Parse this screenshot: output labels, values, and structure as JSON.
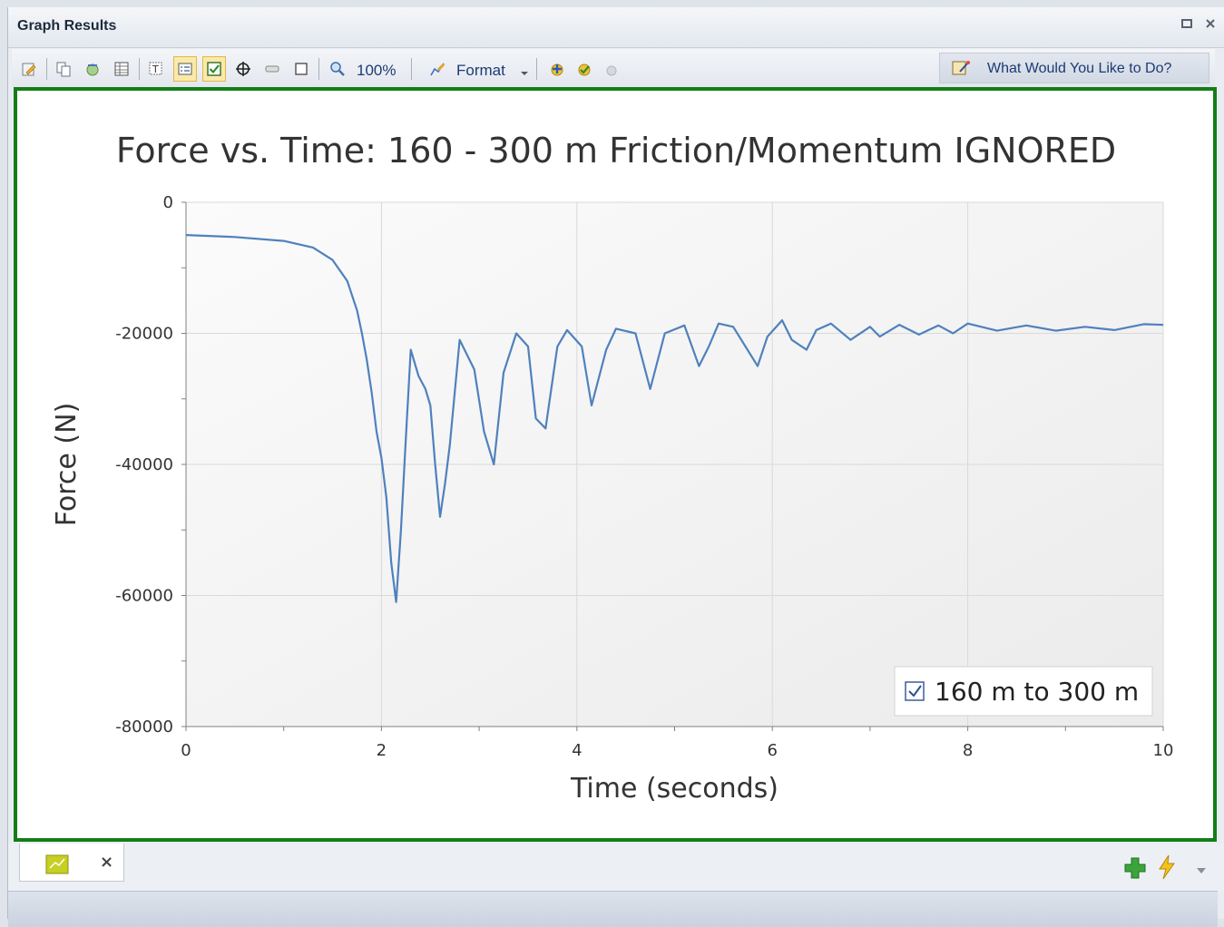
{
  "window": {
    "title": "Graph Results",
    "restore_icon": "restore-window-icon",
    "close_icon": "close-icon"
  },
  "toolbar": {
    "zoom_label": "100%",
    "format_label": "Format",
    "help_label": "What Would You Like to Do?",
    "icons": [
      "edit-icon",
      "copy-icon",
      "export-icon",
      "table-icon",
      "text-icon",
      "legend-icon",
      "checkbox-icon",
      "crosshair-icon",
      "marker-icon",
      "box-icon",
      "zoom-icon",
      "format-icon",
      "add-graph-icon",
      "check-graph-icon",
      "info-icon",
      "wizard-icon"
    ]
  },
  "bottom": {
    "tab_icon": "graph-tab-icon",
    "tab_close": "×",
    "add_icon": "add-icon",
    "lightning_icon": "lightning-icon",
    "dropdown_icon": "dropdown-arrow-icon"
  },
  "colors": {
    "frame_border": "#137e16",
    "series": "#4f81bd",
    "plot_bg": "#f4f4f4"
  },
  "chart_data": {
    "type": "line",
    "title": "Force vs. Time: 160 - 300 m Friction/Momentum IGNORED",
    "xlabel": "Time (seconds)",
    "ylabel": "Force (N)",
    "xlim": [
      0,
      10
    ],
    "ylim": [
      -80000,
      0
    ],
    "x_ticks": [
      0,
      2,
      4,
      6,
      8,
      10
    ],
    "y_ticks": [
      0,
      -20000,
      -40000,
      -60000,
      -80000
    ],
    "grid": true,
    "legend": "bottom-right",
    "legend_checked": true,
    "series": [
      {
        "name": "160 m to 300 m",
        "x": [
          0,
          0.5,
          1.0,
          1.3,
          1.5,
          1.65,
          1.75,
          1.8,
          1.85,
          1.9,
          1.95,
          2.0,
          2.05,
          2.1,
          2.15,
          2.2,
          2.25,
          2.3,
          2.38,
          2.45,
          2.5,
          2.55,
          2.6,
          2.65,
          2.7,
          2.8,
          2.9,
          2.95,
          3.05,
          3.15,
          3.25,
          3.38,
          3.5,
          3.58,
          3.68,
          3.8,
          3.9,
          4.05,
          4.15,
          4.3,
          4.4,
          4.6,
          4.75,
          4.9,
          5.1,
          5.25,
          5.35,
          5.45,
          5.6,
          5.85,
          5.95,
          6.1,
          6.2,
          6.35,
          6.45,
          6.6,
          6.8,
          7.0,
          7.1,
          7.3,
          7.5,
          7.7,
          7.85,
          8.0,
          8.3,
          8.6,
          8.9,
          9.2,
          9.5,
          9.8,
          10.0
        ],
        "y": [
          -5000,
          -5300,
          -5900,
          -6900,
          -8800,
          -12000,
          -16500,
          -20000,
          -24000,
          -29000,
          -35000,
          -39000,
          -45000,
          -55000,
          -61000,
          -50000,
          -36000,
          -22500,
          -26500,
          -28500,
          -31000,
          -40000,
          -48000,
          -43000,
          -37000,
          -21000,
          -24000,
          -25500,
          -35000,
          -40000,
          -26000,
          -20000,
          -22000,
          -33000,
          -34500,
          -22000,
          -19500,
          -22000,
          -31000,
          -22500,
          -19300,
          -20000,
          -28500,
          -20000,
          -18800,
          -25000,
          -22000,
          -18500,
          -19000,
          -25000,
          -20500,
          -18000,
          -21000,
          -22500,
          -19500,
          -18500,
          -21000,
          -19000,
          -20500,
          -18700,
          -20200,
          -18800,
          -20000,
          -18500,
          -19600,
          -18800,
          -19600,
          -19000,
          -19500,
          -18600,
          -18700
        ]
      }
    ]
  }
}
